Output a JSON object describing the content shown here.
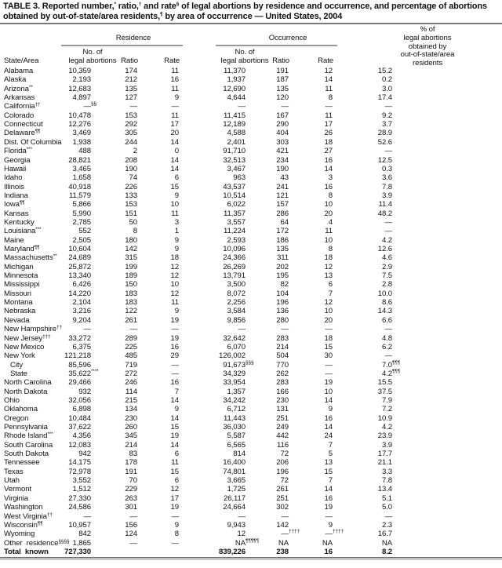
{
  "title": {
    "p1": "TABLE 3. Reported number,",
    "s1": "*",
    "p2": " ratio,",
    "s2": "†",
    "p3": " and rate",
    "s3": "§",
    "p4": " of legal abortions by residence and occurrence, and percentage of abortions obtained by out-of-state/area residents,",
    "s4": "¶",
    "p5": " by area of occurrence — United States, 2004"
  },
  "header": {
    "residence": "Residence",
    "occurrence": "Occurrence",
    "pct_l1": "% of",
    "pct_l2": "legal abortions",
    "pct_l3": "obtained by",
    "pct_l4": "out-of-state/area",
    "pct_l5": "residents",
    "state": "State/Area",
    "no_l1": "No. of",
    "no_l2": "legal abortions",
    "ratio": "Ratio",
    "rate": "Rate"
  },
  "rows": [
    {
      "state": "Alabama",
      "cells": [
        "10,359",
        "174",
        "11",
        "11,370",
        "191",
        "12",
        "15.2"
      ]
    },
    {
      "state": "Alaska",
      "cells": [
        "2,193",
        "212",
        "16",
        "1,937",
        "187",
        "14",
        "0.2"
      ]
    },
    {
      "state": "Arizona",
      "sup": "**",
      "cells": [
        "12,683",
        "135",
        "11",
        "12,690",
        "135",
        "11",
        "3.0"
      ]
    },
    {
      "state": "Arkansas",
      "cells": [
        "4,897",
        "127",
        "9",
        "4,644",
        "120",
        "8",
        "17.4"
      ]
    },
    {
      "state": "California",
      "sup": "††",
      "cells": [
        [
          "—",
          "§§"
        ],
        "—",
        "—",
        "—",
        "—",
        "—",
        "—"
      ]
    },
    {
      "state": "Colorado",
      "cells": [
        "10,478",
        "153",
        "11",
        "11,415",
        "167",
        "11",
        "9.2"
      ]
    },
    {
      "state": "Connecticut",
      "cells": [
        "12,276",
        "292",
        "17",
        "12,189",
        "290",
        "17",
        "3.7"
      ]
    },
    {
      "state": "Delaware",
      "sup": "¶¶",
      "cells": [
        "3,469",
        "305",
        "20",
        "4,588",
        "404",
        "26",
        "28.9"
      ]
    },
    {
      "state": "Dist. Of Columbia",
      "cells": [
        "1,938",
        "244",
        "14",
        "2,401",
        "303",
        "18",
        "52.6"
      ]
    },
    {
      "state": "Florida",
      "sup": "***",
      "cells": [
        "488",
        "2",
        "0",
        "91,710",
        "421",
        "27",
        "—"
      ]
    },
    {
      "state": "Georgia",
      "cells": [
        "28,821",
        "208",
        "14",
        "32,513",
        "234",
        "16",
        "12.5"
      ]
    },
    {
      "state": "Hawaii",
      "cells": [
        "3,465",
        "190",
        "14",
        "3,467",
        "190",
        "14",
        "0.3"
      ]
    },
    {
      "state": "Idaho",
      "cells": [
        "1,658",
        "74",
        "6",
        "963",
        "43",
        "3",
        "3.6"
      ]
    },
    {
      "state": "Illinois",
      "cells": [
        "40,918",
        "226",
        "15",
        "43,537",
        "241",
        "16",
        "7.8"
      ]
    },
    {
      "state": "Indiana",
      "cells": [
        "11,579",
        "133",
        "9",
        "10,514",
        "121",
        "8",
        "3.9"
      ]
    },
    {
      "state": "Iowa",
      "sup": "¶¶",
      "cells": [
        "5,866",
        "153",
        "10",
        "6,022",
        "157",
        "10",
        "11.4"
      ]
    },
    {
      "state": "Kansas",
      "cells": [
        "5,990",
        "151",
        "11",
        "11,357",
        "286",
        "20",
        "48.2"
      ]
    },
    {
      "state": "Kentucky",
      "cells": [
        "2,785",
        "50",
        "3",
        "3,557",
        "64",
        "4",
        "—"
      ]
    },
    {
      "state": "Louisiana",
      "sup": "***",
      "cells": [
        "552",
        "8",
        "1",
        "11,224",
        "172",
        "11",
        "—"
      ]
    },
    {
      "state": "Maine",
      "cells": [
        "2,505",
        "180",
        "9",
        "2,593",
        "186",
        "10",
        "4.2"
      ]
    },
    {
      "state": "Maryland",
      "sup": "¶¶",
      "cells": [
        "10,604",
        "142",
        "9",
        "10,096",
        "135",
        "8",
        "12.6"
      ]
    },
    {
      "state": "Massachusetts",
      "sup": "**",
      "cells": [
        "24,689",
        "315",
        "18",
        "24,366",
        "311",
        "18",
        "4.6"
      ]
    },
    {
      "state": "Michigan",
      "cells": [
        "25,872",
        "199",
        "12",
        "26,269",
        "202",
        "12",
        "2.9"
      ]
    },
    {
      "state": "Minnesota",
      "cells": [
        "13,340",
        "189",
        "12",
        "13,791",
        "195",
        "13",
        "7.5"
      ]
    },
    {
      "state": "Mississippi",
      "cells": [
        "6,426",
        "150",
        "10",
        "3,500",
        "82",
        "6",
        "2.8"
      ]
    },
    {
      "state": "Missouri",
      "cells": [
        "14,220",
        "183",
        "12",
        "8,072",
        "104",
        "7",
        "10.0"
      ]
    },
    {
      "state": "Montana",
      "cells": [
        "2,104",
        "183",
        "11",
        "2,256",
        "196",
        "12",
        "8.6"
      ]
    },
    {
      "state": "Nebraska",
      "cells": [
        "3,216",
        "122",
        "9",
        "3,584",
        "136",
        "10",
        "14.3"
      ]
    },
    {
      "state": "Nevada",
      "cells": [
        "9,204",
        "261",
        "19",
        "9,856",
        "280",
        "20",
        "6.6"
      ]
    },
    {
      "state": "New Hampshire",
      "sup": "††",
      "cells": [
        "—",
        "—",
        "—",
        "—",
        "—",
        "—",
        "—"
      ]
    },
    {
      "state": "New Jersey",
      "sup": "†††",
      "cells": [
        "33,272",
        "289",
        "19",
        "32,642",
        "283",
        "18",
        "4.8"
      ]
    },
    {
      "state": "New Mexico",
      "cells": [
        "6,375",
        "225",
        "16",
        "6,070",
        "214",
        "15",
        "6.2"
      ]
    },
    {
      "state": "New York",
      "cells": [
        "121,218",
        "485",
        "29",
        "126,002",
        "504",
        "30",
        "—"
      ]
    },
    {
      "state": "City",
      "indent": true,
      "cells": [
        "85,596",
        "719",
        "—",
        [
          "91,673",
          "§§§"
        ],
        "770",
        "—",
        [
          "7.0",
          "¶¶¶"
        ]
      ]
    },
    {
      "state": "State",
      "indent": true,
      "cells": [
        [
          "35,622",
          "****"
        ],
        "272",
        "—",
        "34,329",
        "262",
        "—",
        [
          "4.2",
          "¶¶¶"
        ]
      ]
    },
    {
      "state": "North Carolina",
      "cells": [
        "29,466",
        "246",
        "16",
        "33,954",
        "283",
        "19",
        "15.5"
      ]
    },
    {
      "state": "North Dakota",
      "cells": [
        "932",
        "114",
        "7",
        "1,357",
        "166",
        "10",
        "37.5"
      ]
    },
    {
      "state": "Ohio",
      "cells": [
        "32,056",
        "215",
        "14",
        "34,242",
        "230",
        "14",
        "7.9"
      ]
    },
    {
      "state": "Oklahoma",
      "cells": [
        "6,898",
        "134",
        "9",
        "6,712",
        "131",
        "9",
        "7.2"
      ]
    },
    {
      "state": "Oregon",
      "cells": [
        "10,484",
        "230",
        "14",
        "11,443",
        "251",
        "16",
        "10.9"
      ]
    },
    {
      "state": "Pennsylvania",
      "cells": [
        "37,622",
        "260",
        "15",
        "36,030",
        "249",
        "14",
        "4.2"
      ]
    },
    {
      "state": "Rhode Island",
      "sup": "***",
      "cells": [
        "4,356",
        "345",
        "19",
        "5,587",
        "442",
        "24",
        "23.9"
      ]
    },
    {
      "state": "South Carolina",
      "cells": [
        "12,083",
        "214",
        "14",
        "6,565",
        "116",
        "7",
        "3.9"
      ]
    },
    {
      "state": "South Dakota",
      "cells": [
        "942",
        "83",
        "6",
        "814",
        "72",
        "5",
        "17.7"
      ]
    },
    {
      "state": "Tennessee",
      "cells": [
        "14,175",
        "178",
        "11",
        "16,400",
        "206",
        "13",
        "21.1"
      ]
    },
    {
      "state": "Texas",
      "cells": [
        "72,978",
        "191",
        "15",
        "74,801",
        "196",
        "15",
        "3.3"
      ]
    },
    {
      "state": "Utah",
      "cells": [
        "3,552",
        "70",
        "6",
        "3,665",
        "72",
        "7",
        "7.8"
      ]
    },
    {
      "state": "Vermont",
      "cells": [
        "1,512",
        "229",
        "12",
        "1,725",
        "261",
        "14",
        "13.4"
      ]
    },
    {
      "state": "Virginia",
      "cells": [
        "27,330",
        "263",
        "17",
        "26,117",
        "251",
        "16",
        "5.1"
      ]
    },
    {
      "state": "Washington",
      "cells": [
        "24,586",
        "301",
        "19",
        "24,664",
        "302",
        "19",
        "5.0"
      ]
    },
    {
      "state": "West Virginia",
      "sup": "††",
      "cells": [
        "—",
        "—",
        "—",
        "—",
        "—",
        "—",
        "—"
      ]
    },
    {
      "state": "Wisconsin",
      "sup": "¶¶",
      "cells": [
        "10,957",
        "156",
        "9",
        "9,943",
        "142",
        "9",
        "2.3"
      ]
    },
    {
      "state": "Wyoming",
      "cells": [
        "842",
        "124",
        "8",
        "12",
        [
          "—",
          "††††"
        ],
        [
          "—",
          "††††"
        ],
        "16.7"
      ]
    },
    {
      "state": "Other  residence",
      "sup": "§§§§",
      "cells": [
        "1,865",
        "—",
        "—",
        [
          "NA",
          "¶¶¶¶¶"
        ],
        "NA",
        "NA",
        "NA"
      ]
    },
    {
      "state": "Total  known",
      "total": true,
      "cells": [
        "727,330",
        "",
        "",
        "839,226",
        "238",
        "16",
        "8.2"
      ]
    }
  ]
}
